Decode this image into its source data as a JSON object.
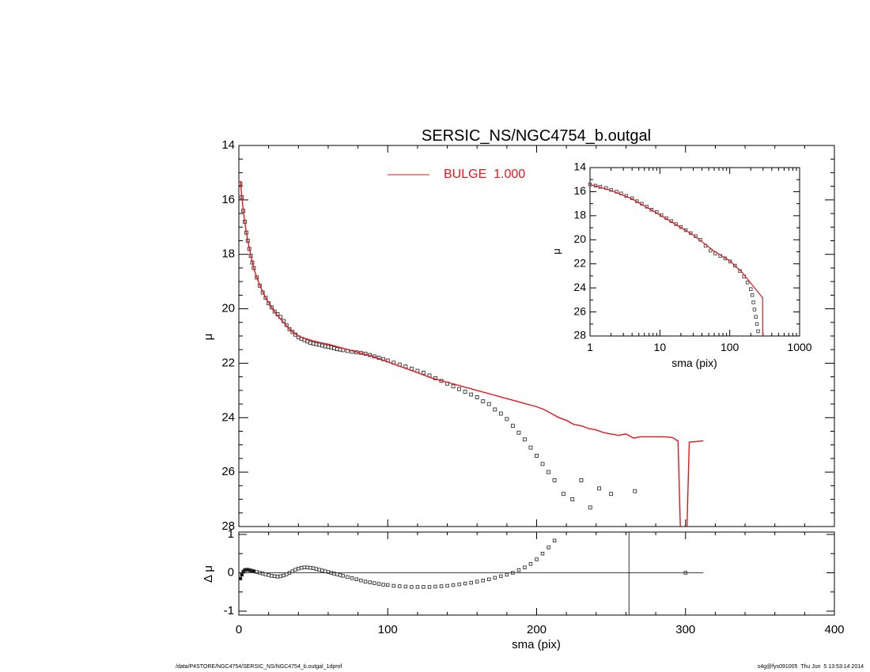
{
  "footer": {
    "path": "/data/P4STORE/NGC4754/SERSIC_NS/NGC4754_b.outgal_1dprof",
    "stamp": "s4g@fys091005  Thu Jun  5 13:53:14 2014"
  },
  "colors": {
    "model": "#e8141b",
    "data": "#000000",
    "frame": "#000000"
  },
  "chart_data": [
    {
      "id": "main",
      "type": "scatter",
      "title": "SERSIC_NS/NGC4754_b.outgal",
      "xlabel": "",
      "ylabel": "μ",
      "xlim": [
        0,
        400
      ],
      "ylim": [
        28,
        14
      ],
      "y_inverted": true,
      "yticks": [
        "14",
        "16",
        "18",
        "20",
        "22",
        "24",
        "26",
        "28"
      ],
      "xticks_labeled": false,
      "legend": {
        "placement": "top-center",
        "entries": [
          {
            "label": "BULGE  1.000",
            "color": "#e8141b"
          }
        ]
      },
      "series": [
        {
          "name": "data",
          "kind": "points",
          "x": [
            1,
            2,
            3,
            4,
            5,
            6,
            7,
            8,
            9,
            10,
            12,
            14,
            16,
            18,
            20,
            22,
            24,
            26,
            28,
            30,
            32,
            34,
            36,
            38,
            40,
            42,
            44,
            46,
            48,
            50,
            52,
            54,
            56,
            58,
            60,
            62,
            64,
            66,
            68,
            70,
            73,
            76,
            79,
            82,
            85,
            88,
            91,
            94,
            97,
            100,
            104,
            108,
            112,
            116,
            120,
            124,
            128,
            132,
            136,
            140,
            144,
            148,
            152,
            156,
            160,
            164,
            168,
            172,
            176,
            180,
            184,
            188,
            192,
            196,
            200,
            204,
            208,
            212,
            218,
            224,
            230,
            236,
            242,
            250,
            266
          ],
          "y": [
            15.4,
            15.9,
            16.4,
            16.8,
            17.2,
            17.5,
            17.8,
            18.05,
            18.3,
            18.5,
            18.85,
            19.15,
            19.4,
            19.6,
            19.8,
            19.95,
            20.1,
            20.2,
            20.3,
            20.45,
            20.6,
            20.75,
            20.85,
            20.95,
            21.05,
            21.1,
            21.15,
            21.2,
            21.25,
            21.28,
            21.3,
            21.32,
            21.35,
            21.38,
            21.4,
            21.42,
            21.45,
            21.48,
            21.5,
            21.52,
            21.55,
            21.58,
            21.6,
            21.62,
            21.65,
            21.7,
            21.75,
            21.8,
            21.85,
            21.9,
            21.98,
            22.05,
            22.12,
            22.2,
            22.28,
            22.35,
            22.45,
            22.55,
            22.65,
            22.75,
            22.85,
            22.95,
            23.05,
            23.15,
            23.25,
            23.4,
            23.5,
            23.7,
            23.85,
            24.05,
            24.3,
            24.55,
            24.8,
            25.1,
            25.4,
            25.7,
            26.0,
            26.3,
            26.8,
            27.0,
            26.3,
            27.3,
            26.6,
            26.8,
            26.7
          ]
        },
        {
          "name": "BULGE  1.000",
          "kind": "line",
          "x": [
            1,
            2,
            3,
            4,
            5,
            6,
            8,
            10,
            12,
            15,
            18,
            22,
            26,
            30,
            35,
            40,
            45,
            50,
            55,
            60,
            70,
            80,
            90,
            100,
            110,
            120,
            130,
            140,
            150,
            160,
            170,
            180,
            190,
            200,
            205,
            210,
            215,
            220,
            225,
            230,
            235,
            240,
            245,
            250,
            255,
            260,
            265,
            270,
            275,
            280,
            285,
            290,
            292,
            293,
            295,
            296.5
          ],
          "y": [
            15.3,
            15.9,
            16.4,
            16.8,
            17.2,
            17.5,
            18.05,
            18.5,
            18.85,
            19.25,
            19.6,
            19.95,
            20.25,
            20.5,
            20.8,
            21.0,
            21.1,
            21.18,
            21.25,
            21.3,
            21.45,
            21.6,
            21.75,
            21.95,
            22.15,
            22.35,
            22.55,
            22.7,
            22.85,
            23.0,
            23.15,
            23.3,
            23.45,
            23.6,
            23.7,
            23.85,
            24.0,
            24.1,
            24.25,
            24.3,
            24.4,
            24.45,
            24.55,
            24.6,
            24.65,
            24.6,
            24.75,
            24.7,
            24.7,
            24.7,
            24.7,
            24.72,
            24.75,
            24.8,
            24.85,
            28.0
          ]
        },
        {
          "name": "BULGE  1.000",
          "kind": "line",
          "x": [
            301,
            302.5,
            312
          ],
          "y": [
            28.0,
            24.9,
            24.85
          ]
        }
      ]
    },
    {
      "id": "inset",
      "type": "scatter",
      "xscale": "log",
      "xlabel": "sma (pix)",
      "ylabel": "μ",
      "xlim": [
        1,
        1000
      ],
      "ylim": [
        28,
        14
      ],
      "y_inverted": true,
      "xticks": [
        "1",
        "10",
        "100",
        "1000"
      ],
      "yticks": [
        "14",
        "16",
        "18",
        "20",
        "22",
        "24",
        "26",
        "28"
      ],
      "series": [
        {
          "name": "data",
          "kind": "points",
          "x": [
            1,
            1.2,
            1.4,
            1.7,
            2,
            2.4,
            2.8,
            3.3,
            4,
            4.7,
            5.5,
            6.5,
            7.6,
            9,
            10.5,
            12.4,
            14.6,
            17,
            20,
            23.5,
            27.6,
            32.5,
            38,
            45,
            53,
            62,
            73,
            86,
            101,
            119,
            140,
            160,
            180,
            200,
            210,
            218,
            226,
            236,
            245,
            255
          ],
          "y": [
            15.4,
            15.5,
            15.6,
            15.7,
            15.85,
            16.0,
            16.15,
            16.35,
            16.55,
            16.8,
            17.0,
            17.25,
            17.5,
            17.7,
            17.95,
            18.2,
            18.45,
            18.7,
            18.95,
            19.2,
            19.45,
            19.7,
            20.0,
            20.5,
            20.9,
            21.15,
            21.35,
            21.55,
            21.8,
            22.15,
            22.6,
            23.05,
            23.55,
            24.1,
            24.6,
            25.2,
            25.8,
            26.4,
            27.0,
            27.6
          ]
        },
        {
          "name": "BULGE  1.000",
          "kind": "line",
          "x": [
            1,
            2,
            4,
            8,
            15,
            30,
            60,
            100,
            150,
            200,
            250,
            290,
            295,
            296.5
          ],
          "y": [
            15.4,
            15.9,
            16.6,
            17.6,
            18.55,
            19.6,
            20.95,
            21.75,
            22.7,
            23.6,
            24.3,
            24.75,
            24.8,
            28.0
          ]
        }
      ]
    },
    {
      "id": "residual",
      "type": "scatter",
      "xlabel": "sma (pix)",
      "ylabel": "Δ μ",
      "xlim": [
        0,
        400
      ],
      "ylim": [
        -1,
        1
      ],
      "xticks": [
        "0",
        "100",
        "200",
        "300",
        "400"
      ],
      "yticks": [
        "-1",
        "0",
        "1"
      ],
      "reference_hline": {
        "y": 0,
        "x_from": 0,
        "x_to": 312
      },
      "reference_vline": {
        "x": 262
      },
      "series": [
        {
          "name": "residual",
          "kind": "points",
          "x": [
            1,
            2,
            3,
            4,
            5,
            6,
            7,
            8,
            9,
            10,
            12,
            14,
            16,
            18,
            20,
            22,
            24,
            26,
            28,
            30,
            32,
            34,
            36,
            38,
            40,
            42,
            44,
            46,
            48,
            50,
            52,
            54,
            56,
            58,
            60,
            62,
            64,
            66,
            68,
            70,
            73,
            76,
            79,
            82,
            85,
            88,
            91,
            94,
            97,
            100,
            104,
            108,
            112,
            116,
            120,
            124,
            128,
            132,
            136,
            140,
            144,
            148,
            152,
            156,
            160,
            164,
            168,
            172,
            176,
            180,
            184,
            188,
            192,
            196,
            200,
            204,
            208,
            212,
            300
          ],
          "y": [
            -0.15,
            -0.05,
            0.03,
            0.07,
            0.08,
            0.08,
            0.07,
            0.06,
            0.05,
            0.04,
            0.02,
            0.0,
            -0.02,
            -0.04,
            -0.06,
            -0.08,
            -0.09,
            -0.1,
            -0.09,
            -0.07,
            -0.04,
            0.0,
            0.04,
            0.08,
            0.11,
            0.13,
            0.14,
            0.14,
            0.13,
            0.12,
            0.1,
            0.08,
            0.06,
            0.04,
            0.02,
            0.0,
            -0.02,
            -0.04,
            -0.06,
            -0.08,
            -0.11,
            -0.14,
            -0.17,
            -0.2,
            -0.23,
            -0.25,
            -0.27,
            -0.29,
            -0.31,
            -0.32,
            -0.34,
            -0.35,
            -0.36,
            -0.37,
            -0.37,
            -0.37,
            -0.37,
            -0.36,
            -0.35,
            -0.34,
            -0.32,
            -0.3,
            -0.28,
            -0.26,
            -0.23,
            -0.2,
            -0.17,
            -0.13,
            -0.09,
            -0.05,
            0.0,
            0.07,
            0.14,
            0.23,
            0.35,
            0.5,
            0.66,
            0.84,
            0.0
          ]
        }
      ]
    }
  ]
}
